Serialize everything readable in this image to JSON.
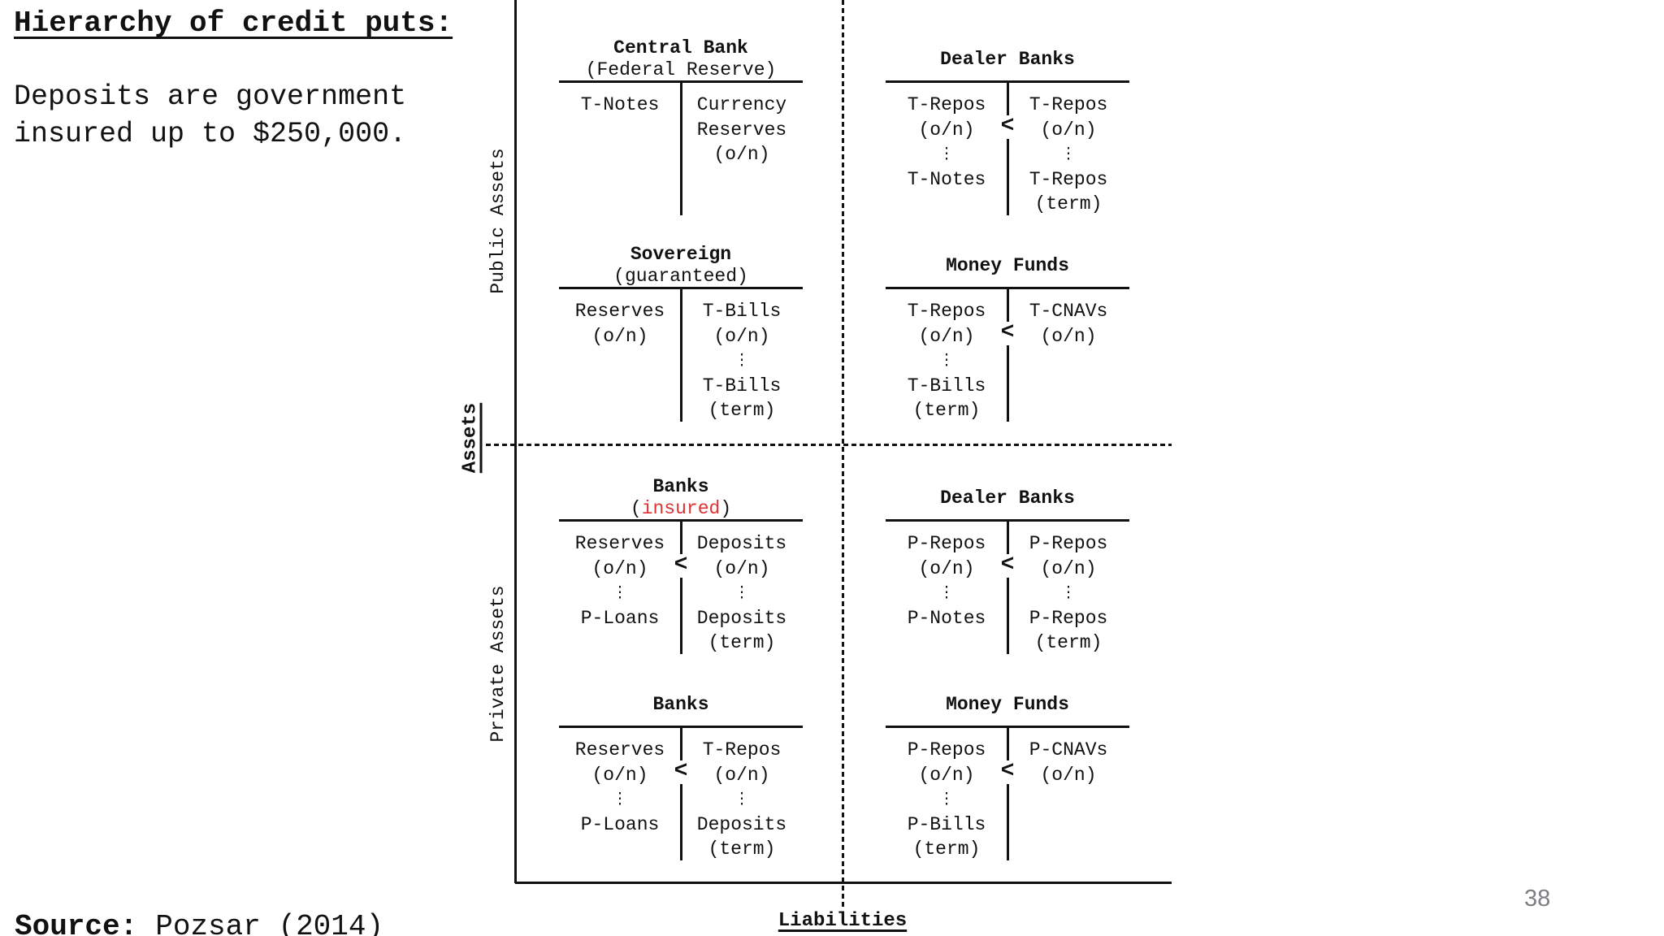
{
  "page": {
    "title": "Hierarchy of credit puts:",
    "note_line1": "Deposits are government",
    "note_line2": "insured up to $250,000.",
    "source_label": "Source:",
    "source_text": "Pozsar (2014)",
    "page_number": "38"
  },
  "axes": {
    "assets_label": "Assets",
    "liabilities_label": "Liabilities",
    "public_assets_label": "Public Assets",
    "private_assets_label": "Private Assets"
  },
  "colors": {
    "text": "#111111",
    "highlight_red": "#dd3333",
    "page_number_gray": "#7d7d84"
  },
  "figure": {
    "less_than_symbol": "<",
    "ellipsis_symbol": "⋮"
  },
  "accounts": [
    {
      "id": "central-bank",
      "title": "Central Bank",
      "subtitle": "(Federal Reserve)",
      "subtitle_highlight": "",
      "left": [
        "T-Notes"
      ],
      "right": [
        "Currency",
        "Reserves",
        "(o/n)"
      ],
      "less_than": false
    },
    {
      "id": "dealer-banks-top",
      "title": "Dealer Banks",
      "subtitle": "",
      "subtitle_highlight": "",
      "left": [
        "T-Repos",
        "(o/n)",
        "⋮",
        "T-Notes"
      ],
      "right": [
        "T-Repos",
        "(o/n)",
        "⋮",
        "T-Repos",
        "(term)"
      ],
      "less_than": true
    },
    {
      "id": "sovereign",
      "title": "Sovereign",
      "subtitle": "(guaranteed)",
      "subtitle_highlight": "",
      "left": [
        "Reserves",
        "(o/n)"
      ],
      "right": [
        "T-Bills",
        "(o/n)",
        "⋮",
        "T-Bills",
        "(term)"
      ],
      "less_than": false
    },
    {
      "id": "money-funds-top",
      "title": "Money Funds",
      "subtitle": "",
      "subtitle_highlight": "",
      "left": [
        "T-Repos",
        "(o/n)",
        "⋮",
        "T-Bills",
        "(term)"
      ],
      "right": [
        "T-CNAVs",
        "(o/n)"
      ],
      "less_than": true
    },
    {
      "id": "banks-insured",
      "title": "Banks",
      "subtitle": "(insured)",
      "subtitle_highlight": "insured",
      "left": [
        "Reserves",
        "(o/n)",
        "⋮",
        "P-Loans"
      ],
      "right": [
        "Deposits",
        "(o/n)",
        "⋮",
        "Deposits",
        "(term)"
      ],
      "less_than": true
    },
    {
      "id": "dealer-banks-bottom",
      "title": "Dealer Banks",
      "subtitle": "",
      "subtitle_highlight": "",
      "left": [
        "P-Repos",
        "(o/n)",
        "⋮",
        "P-Notes"
      ],
      "right": [
        "P-Repos",
        "(o/n)",
        "⋮",
        "P-Repos",
        "(term)"
      ],
      "less_than": true
    },
    {
      "id": "banks-bottom",
      "title": "Banks",
      "subtitle": "",
      "subtitle_highlight": "",
      "left": [
        "Reserves",
        "(o/n)",
        "⋮",
        "P-Loans"
      ],
      "right": [
        "T-Repos",
        "(o/n)",
        "⋮",
        "Deposits",
        "(term)"
      ],
      "less_than": true
    },
    {
      "id": "money-funds-bottom",
      "title": "Money Funds",
      "subtitle": "",
      "subtitle_highlight": "",
      "left": [
        "P-Repos",
        "(o/n)",
        "⋮",
        "P-Bills",
        "(term)"
      ],
      "right": [
        "P-CNAVs",
        "(o/n)"
      ],
      "less_than": true
    }
  ]
}
